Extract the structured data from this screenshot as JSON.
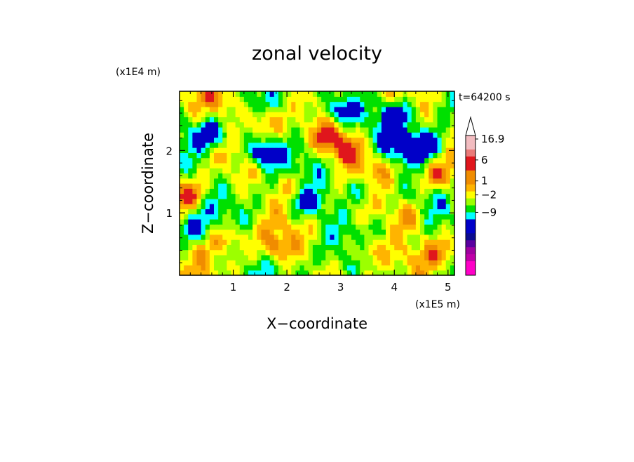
{
  "chart_data": {
    "type": "heatmap",
    "title": "zonal velocity",
    "xlabel": "X−coordinate",
    "ylabel": "Z−coordinate",
    "x_scale_label": "(x1E5 m)",
    "y_scale_label": "(x1E4 m)",
    "time_label": "t=64200 s",
    "xlim": [
      0.0,
      5.12
    ],
    "ylim": [
      0.0,
      2.95
    ],
    "x_ticks": [
      1,
      2,
      3,
      4,
      5
    ],
    "y_ticks": [
      1,
      2
    ],
    "x_tick_labels": [
      "1",
      "2",
      "3",
      "4",
      "5"
    ],
    "y_tick_labels": [
      "1",
      "2"
    ],
    "grid": false,
    "colorbar": {
      "position": "right",
      "extend_max": true,
      "label_values": [
        "16.9",
        "6",
        "1",
        "−2",
        "−9"
      ],
      "levels": [
        {
          "color": "#f2bcc0"
        },
        {
          "color": "#f2bcc0"
        },
        {
          "color": "#ea7a78"
        },
        {
          "color": "#e0161c"
        },
        {
          "color": "#e0161c"
        },
        {
          "color": "#f08c00"
        },
        {
          "color": "#f08c00"
        },
        {
          "color": "#ffb400"
        },
        {
          "color": "#ffff00"
        },
        {
          "color": "#9cff00"
        },
        {
          "color": "#00e000"
        },
        {
          "color": "#00ffff"
        },
        {
          "color": "#0000c8"
        },
        {
          "color": "#0000c8"
        },
        {
          "color": "#0a0a90"
        },
        {
          "color": "#5a00a0"
        },
        {
          "color": "#a000a0"
        },
        {
          "color": "#c000a8"
        },
        {
          "color": "#ff00c8"
        },
        {
          "color": "#ff00c8"
        }
      ]
    },
    "field": {
      "nx": 64,
      "nz": 36,
      "palette": [
        "#0000c8",
        "#00ffff",
        "#00e000",
        "#9cff00",
        "#ffff00",
        "#ffb400",
        "#f08c00",
        "#e0161c"
      ],
      "features": [
        {
          "x": 4.3,
          "z": 2.05,
          "value": -9
        },
        {
          "x": 1.55,
          "z": 1.95,
          "value": -8
        },
        {
          "x": 3.0,
          "z": 2.65,
          "value": -8
        },
        {
          "x": 0.6,
          "z": 2.25,
          "value": -6
        },
        {
          "x": 4.75,
          "z": 2.1,
          "value": -6
        },
        {
          "x": 4.0,
          "z": 2.55,
          "value": -5
        },
        {
          "x": 0.2,
          "z": 0.75,
          "value": -4
        },
        {
          "x": 3.4,
          "z": 1.35,
          "value": -4
        },
        {
          "x": 2.4,
          "z": 1.15,
          "value": -5
        },
        {
          "x": 1.6,
          "z": 2.5,
          "value": 5
        },
        {
          "x": 3.1,
          "z": 2.0,
          "value": 6
        },
        {
          "x": 2.8,
          "z": 2.2,
          "value": 5
        },
        {
          "x": 0.15,
          "z": 1.3,
          "value": 6
        },
        {
          "x": 0.9,
          "z": 0.6,
          "value": 4
        },
        {
          "x": 1.8,
          "z": 0.45,
          "value": 4
        },
        {
          "x": 3.5,
          "z": 0.4,
          "value": 4
        },
        {
          "x": 4.3,
          "z": 0.95,
          "value": 4
        },
        {
          "x": 4.95,
          "z": 0.35,
          "value": 4
        },
        {
          "x": 0.8,
          "z": 2.8,
          "value": 4
        },
        {
          "x": 4.85,
          "z": 1.55,
          "value": 5
        },
        {
          "x": 2.1,
          "z": 1.45,
          "value": 3
        },
        {
          "x": 3.6,
          "z": 1.75,
          "value": 3
        }
      ]
    }
  }
}
